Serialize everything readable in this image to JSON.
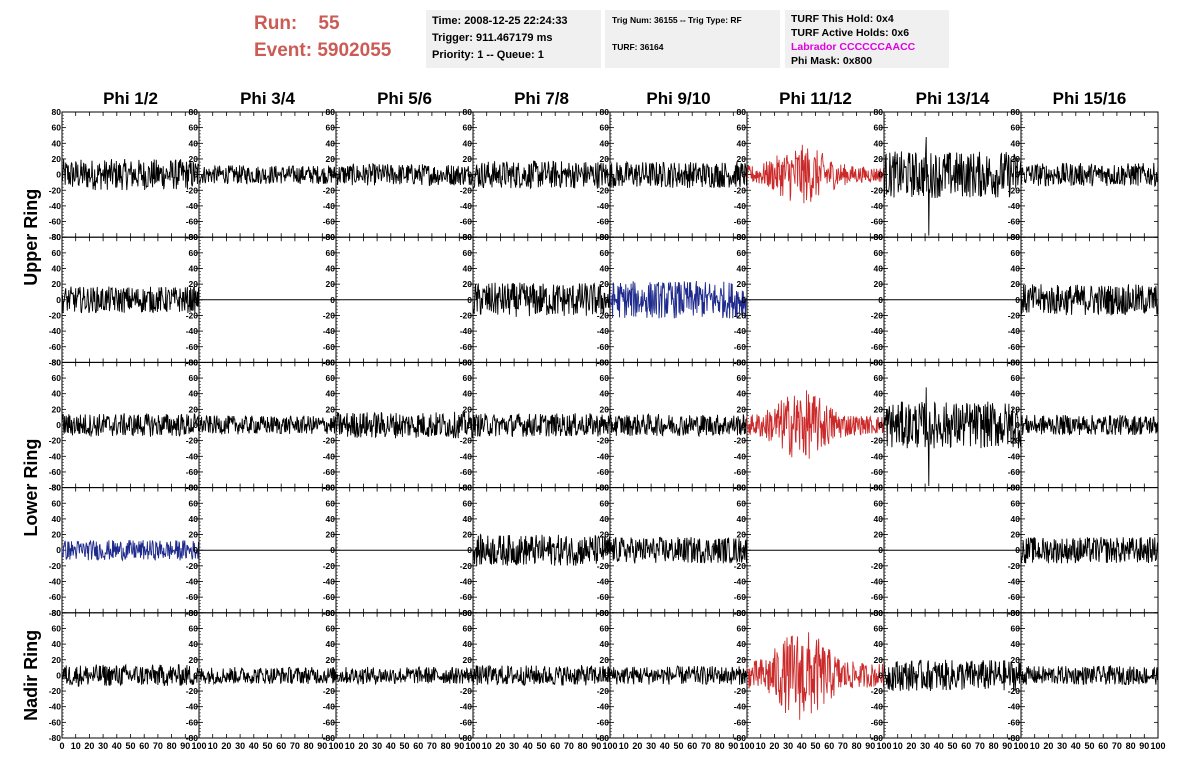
{
  "run": {
    "run_label": "Run:",
    "run_value": "55",
    "event_label": "Event:",
    "event_value": "5902055"
  },
  "info_time": {
    "time": "Time: 2008-12-25 22:24:33",
    "trigger": "Trigger: 911.467179 ms",
    "priority": "Priority: 1 -- Queue: 1"
  },
  "info_trig": {
    "trig": "Trig Num: 36155 -- Trig Type: RF",
    "turf": "TURF: 36164"
  },
  "info_turf": {
    "this_hold": "TURF This Hold: 0x4",
    "active_holds": "TURF Active Holds: 0x6",
    "labrador": "Labrador CCCCCCAACC",
    "phi_mask": "Phi Mask: 0x800"
  },
  "colors": {
    "run_text": "#cc5a55",
    "magenta": "#e000e0",
    "trace_black": "#000000",
    "trace_red": "#cc2a2a",
    "trace_blue": "#1e2a8c",
    "info_bg": "#f0f0f0"
  },
  "chart_data": {
    "type": "line",
    "columns": [
      "Phi 1/2",
      "Phi 3/4",
      "Phi 5/6",
      "Phi 7/8",
      "Phi 9/10",
      "Phi 11/12",
      "Phi 13/14",
      "Phi 15/16"
    ],
    "ring_labels": [
      {
        "name": "Upper Ring",
        "rows": [
          0,
          1
        ]
      },
      {
        "name": "Lower Ring",
        "rows": [
          2,
          3
        ]
      },
      {
        "name": "Nadir Ring",
        "rows": [
          4
        ]
      }
    ],
    "ylim": [
      -80,
      80
    ],
    "yticks": [
      80,
      60,
      40,
      20,
      0,
      -20,
      -40,
      -60,
      -80
    ],
    "xlim": [
      0,
      100
    ],
    "xticks": [
      0,
      10,
      20,
      30,
      40,
      50,
      60,
      70,
      80,
      90,
      100
    ],
    "panels": [
      [
        {
          "color": "black",
          "amp": 20
        },
        {
          "color": "black",
          "amp": 12
        },
        {
          "color": "black",
          "amp": 14
        },
        {
          "color": "black",
          "amp": 18
        },
        {
          "color": "black",
          "amp": 17
        },
        {
          "color": "red",
          "amp": 22,
          "burst": true
        },
        {
          "color": "black",
          "amp": 30,
          "spike": true
        },
        {
          "color": "black",
          "amp": 15
        }
      ],
      [
        {
          "color": "black",
          "amp": 17
        },
        {
          "color": "flat",
          "amp": 0
        },
        {
          "color": "flat",
          "amp": 0
        },
        {
          "color": "black",
          "amp": 22
        },
        {
          "color": "blue",
          "amp": 24
        },
        {
          "color": "flat",
          "amp": 0
        },
        {
          "color": "flat",
          "amp": 0
        },
        {
          "color": "black",
          "amp": 20
        }
      ],
      [
        {
          "color": "black",
          "amp": 15
        },
        {
          "color": "black",
          "amp": 12
        },
        {
          "color": "black",
          "amp": 17
        },
        {
          "color": "black",
          "amp": 15
        },
        {
          "color": "black",
          "amp": 14
        },
        {
          "color": "red",
          "amp": 26,
          "burst": true
        },
        {
          "color": "black",
          "amp": 30,
          "spike": true
        },
        {
          "color": "black",
          "amp": 13
        }
      ],
      [
        {
          "color": "blue",
          "amp": 13
        },
        {
          "color": "flat",
          "amp": 0
        },
        {
          "color": "flat",
          "amp": 0
        },
        {
          "color": "black",
          "amp": 20
        },
        {
          "color": "black",
          "amp": 17
        },
        {
          "color": "flat",
          "amp": 0
        },
        {
          "color": "flat",
          "amp": 0
        },
        {
          "color": "black",
          "amp": 17
        }
      ],
      [
        {
          "color": "black",
          "amp": 14
        },
        {
          "color": "black",
          "amp": 11
        },
        {
          "color": "black",
          "amp": 11
        },
        {
          "color": "black",
          "amp": 13
        },
        {
          "color": "black",
          "amp": 12
        },
        {
          "color": "red",
          "amp": 34,
          "burst": true
        },
        {
          "color": "black",
          "amp": 20
        },
        {
          "color": "black",
          "amp": 12
        }
      ]
    ]
  }
}
